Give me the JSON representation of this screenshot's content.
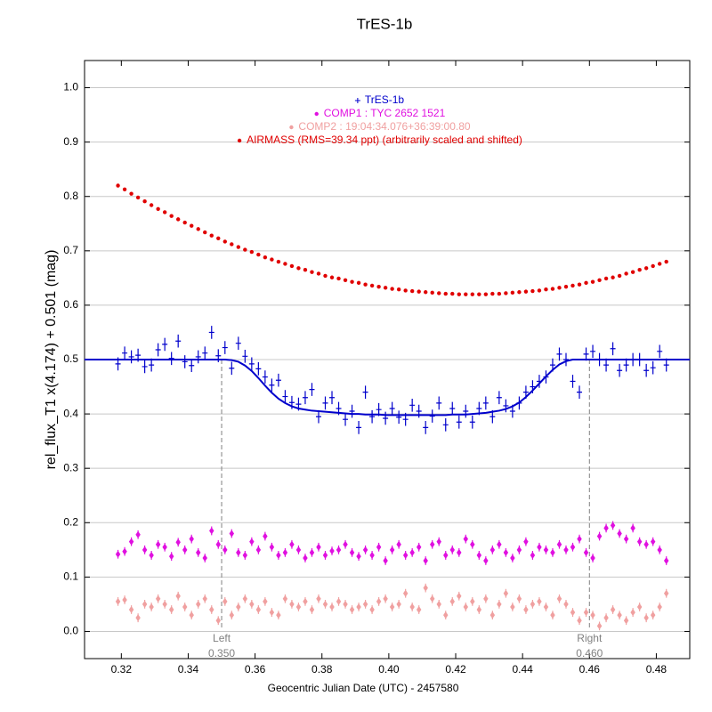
{
  "chart_data": {
    "type": "scatter",
    "title": "TrES-1b",
    "xlabel": "Geocentric Julian Date (UTC) - 2457580",
    "ylabel": "rel_flux_T1 x(4.174) + 0.501 (mag)",
    "xlim": [
      0.309,
      0.49
    ],
    "ylim": [
      -0.05,
      1.05
    ],
    "xticks": [
      0.32,
      0.34,
      0.36,
      0.38,
      {
        "value": 0.4,
        "label": "0.40"
      },
      0.42,
      0.44,
      0.46,
      0.48
    ],
    "yticks": [
      {
        "value": 0.0,
        "label": "0.0"
      },
      0.1,
      0.2,
      0.3,
      0.4,
      0.5,
      0.6,
      0.7,
      0.8,
      0.9,
      {
        "value": 1.0,
        "label": "1.0"
      }
    ],
    "grid": true,
    "legend": "top",
    "x": [
      0.319,
      0.321,
      0.323,
      0.325,
      0.327,
      0.329,
      0.331,
      0.333,
      0.335,
      0.337,
      0.339,
      0.341,
      0.343,
      0.345,
      0.347,
      0.349,
      0.351,
      0.353,
      0.355,
      0.357,
      0.359,
      0.361,
      0.363,
      0.365,
      0.367,
      0.369,
      0.371,
      0.373,
      0.375,
      0.377,
      0.379,
      0.381,
      0.383,
      0.385,
      0.387,
      0.389,
      0.391,
      0.393,
      0.395,
      0.397,
      0.399,
      0.401,
      0.403,
      0.405,
      0.407,
      0.409,
      0.411,
      0.413,
      0.415,
      0.417,
      0.419,
      0.421,
      0.423,
      0.425,
      0.427,
      0.429,
      0.431,
      0.433,
      0.435,
      0.437,
      0.439,
      0.441,
      0.443,
      0.445,
      0.447,
      0.449,
      0.451,
      0.453,
      0.455,
      0.457,
      0.459,
      0.461,
      0.463,
      0.465,
      0.467,
      0.469,
      0.471,
      0.473,
      0.475,
      0.477,
      0.479,
      0.481,
      0.483
    ],
    "series": [
      {
        "name": "TrES-1b",
        "color": "#0000cc",
        "marker": "plus",
        "error": 0.012,
        "values": [
          0.492,
          0.512,
          0.505,
          0.508,
          0.487,
          0.49,
          0.518,
          0.528,
          0.502,
          0.534,
          0.496,
          0.489,
          0.505,
          0.512,
          0.55,
          0.507,
          0.522,
          0.484,
          0.53,
          0.506,
          0.492,
          0.483,
          0.468,
          0.453,
          0.462,
          0.432,
          0.421,
          0.418,
          0.43,
          0.445,
          0.395,
          0.42,
          0.43,
          0.41,
          0.39,
          0.405,
          0.375,
          0.44,
          0.395,
          0.408,
          0.392,
          0.41,
          0.394,
          0.39,
          0.416,
          0.405,
          0.375,
          0.396,
          0.42,
          0.38,
          0.41,
          0.385,
          0.405,
          0.385,
          0.41,
          0.42,
          0.395,
          0.43,
          0.415,
          0.405,
          0.42,
          0.44,
          0.45,
          0.46,
          0.468,
          0.49,
          0.51,
          0.5,
          0.46,
          0.44,
          0.51,
          0.515,
          0.5,
          0.49,
          0.52,
          0.48,
          0.49,
          0.5,
          0.5,
          0.48,
          0.485,
          0.515,
          0.49
        ],
        "fit_values": [
          0.5,
          0.5,
          0.5,
          0.5,
          0.5,
          0.5,
          0.5,
          0.5,
          0.5,
          0.5,
          0.5,
          0.5,
          0.5,
          0.5,
          0.5,
          0.5,
          0.5,
          0.499,
          0.496,
          0.489,
          0.479,
          0.466,
          0.452,
          0.439,
          0.428,
          0.42,
          0.414,
          0.41,
          0.408,
          0.406,
          0.405,
          0.404,
          0.403,
          0.402,
          0.401,
          0.4,
          0.4,
          0.399,
          0.399,
          0.399,
          0.398,
          0.398,
          0.398,
          0.398,
          0.398,
          0.398,
          0.398,
          0.398,
          0.398,
          0.398,
          0.399,
          0.399,
          0.399,
          0.4,
          0.401,
          0.402,
          0.404,
          0.406,
          0.409,
          0.414,
          0.421,
          0.431,
          0.443,
          0.456,
          0.469,
          0.481,
          0.491,
          0.497,
          0.5,
          0.5,
          0.5,
          0.5,
          0.5,
          0.5,
          0.5,
          0.5,
          0.5,
          0.5,
          0.5,
          0.5,
          0.5,
          0.5,
          0.5
        ]
      },
      {
        "name": "COMP1 : TYC 2652 1521",
        "color": "#e010e0",
        "marker": "diamond",
        "error": 0.008,
        "values": [
          0.142,
          0.147,
          0.165,
          0.178,
          0.15,
          0.14,
          0.16,
          0.155,
          0.138,
          0.164,
          0.15,
          0.17,
          0.145,
          0.135,
          0.185,
          0.16,
          0.15,
          0.18,
          0.145,
          0.14,
          0.165,
          0.15,
          0.175,
          0.155,
          0.14,
          0.145,
          0.16,
          0.15,
          0.135,
          0.145,
          0.155,
          0.14,
          0.148,
          0.15,
          0.16,
          0.145,
          0.138,
          0.15,
          0.14,
          0.155,
          0.13,
          0.15,
          0.16,
          0.14,
          0.145,
          0.155,
          0.13,
          0.16,
          0.165,
          0.14,
          0.15,
          0.145,
          0.17,
          0.16,
          0.14,
          0.13,
          0.15,
          0.16,
          0.145,
          0.135,
          0.15,
          0.165,
          0.14,
          0.155,
          0.15,
          0.145,
          0.16,
          0.15,
          0.155,
          0.17,
          0.145,
          0.135,
          0.175,
          0.19,
          0.195,
          0.18,
          0.17,
          0.19,
          0.165,
          0.16,
          0.165,
          0.15,
          0.13
        ]
      },
      {
        "name": "COMP2 : 19:04:34.076+36:39:00.80",
        "color": "#f0a0a0",
        "marker": "diamond",
        "error": 0.008,
        "values": [
          0.055,
          0.058,
          0.04,
          0.025,
          0.05,
          0.045,
          0.06,
          0.05,
          0.04,
          0.065,
          0.045,
          0.03,
          0.05,
          0.06,
          0.04,
          0.02,
          0.055,
          0.03,
          0.045,
          0.06,
          0.05,
          0.04,
          0.055,
          0.035,
          0.03,
          0.06,
          0.05,
          0.045,
          0.055,
          0.04,
          0.06,
          0.05,
          0.045,
          0.055,
          0.05,
          0.04,
          0.045,
          0.05,
          0.04,
          0.055,
          0.06,
          0.045,
          0.05,
          0.07,
          0.045,
          0.04,
          0.08,
          0.06,
          0.05,
          0.03,
          0.055,
          0.065,
          0.045,
          0.055,
          0.04,
          0.06,
          0.03,
          0.05,
          0.07,
          0.045,
          0.06,
          0.04,
          0.05,
          0.055,
          0.045,
          0.03,
          0.06,
          0.05,
          0.035,
          0.02,
          0.035,
          0.03,
          0.01,
          0.025,
          0.04,
          0.03,
          0.02,
          0.035,
          0.045,
          0.025,
          0.03,
          0.045,
          0.07
        ]
      },
      {
        "name": "AIRMASS (RMS=39.34 ppt) (arbitrarily scaled and shifted)",
        "color": "#e00000",
        "marker": "dot",
        "values": [
          0.82,
          0.813,
          0.805,
          0.798,
          0.791,
          0.784,
          0.777,
          0.771,
          0.764,
          0.758,
          0.752,
          0.746,
          0.74,
          0.734,
          0.728,
          0.723,
          0.717,
          0.712,
          0.707,
          0.702,
          0.698,
          0.693,
          0.688,
          0.684,
          0.68,
          0.676,
          0.672,
          0.668,
          0.665,
          0.661,
          0.658,
          0.654,
          0.651,
          0.649,
          0.646,
          0.643,
          0.641,
          0.638,
          0.636,
          0.634,
          0.632,
          0.63,
          0.629,
          0.627,
          0.626,
          0.625,
          0.624,
          0.623,
          0.622,
          0.621,
          0.621,
          0.62,
          0.62,
          0.62,
          0.62,
          0.62,
          0.621,
          0.621,
          0.622,
          0.623,
          0.624,
          0.625,
          0.626,
          0.627,
          0.629,
          0.63,
          0.632,
          0.634,
          0.636,
          0.638,
          0.641,
          0.643,
          0.646,
          0.649,
          0.651,
          0.654,
          0.658,
          0.661,
          0.665,
          0.668,
          0.672,
          0.676,
          0.68
        ]
      }
    ],
    "markers": [
      {
        "label": "Left",
        "value": {
          "value": 0.35,
          "label": "0.350"
        }
      },
      {
        "label": "Right",
        "value": {
          "value": 0.46,
          "label": "0.460"
        }
      }
    ]
  }
}
